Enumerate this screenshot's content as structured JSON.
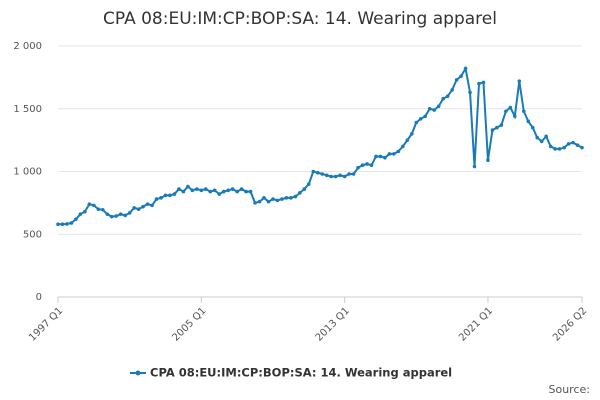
{
  "chart_data": {
    "type": "line",
    "title": "CPA 08:EU:IM:CP:BOP:SA: 14. Wearing apparel",
    "source": "Source:",
    "categories": [
      "1997 Q1",
      null,
      null,
      null,
      null,
      null,
      null,
      null,
      null,
      null,
      null,
      null,
      null,
      null,
      null,
      null,
      null,
      null,
      null,
      null,
      null,
      null,
      null,
      null,
      null,
      null,
      null,
      null,
      null,
      null,
      null,
      null,
      "2005 Q1",
      null,
      null,
      null,
      null,
      null,
      null,
      null,
      null,
      null,
      null,
      null,
      null,
      null,
      null,
      null,
      null,
      null,
      null,
      null,
      null,
      null,
      null,
      null,
      null,
      null,
      null,
      null,
      null,
      null,
      null,
      null,
      "2013 Q1",
      null,
      null,
      null,
      null,
      null,
      null,
      null,
      null,
      null,
      null,
      null,
      null,
      null,
      null,
      null,
      null,
      null,
      null,
      null,
      null,
      null,
      null,
      null,
      null,
      null,
      null,
      null,
      null,
      null,
      null,
      null,
      "2021 Q1",
      null,
      null,
      null,
      null,
      null,
      null,
      null,
      null,
      null,
      null,
      null,
      null,
      null,
      null,
      null,
      null,
      null,
      null,
      null,
      null,
      "2026 Q2"
    ],
    "series": [
      {
        "name": "CPA 08:EU:IM:CP:BOP:SA: 14. Wearing apparel",
        "color": "#1a7bb9",
        "values": [
          580,
          580,
          582,
          590,
          620,
          660,
          680,
          740,
          730,
          700,
          695,
          660,
          640,
          645,
          660,
          650,
          670,
          710,
          700,
          720,
          740,
          730,
          780,
          790,
          810,
          810,
          820,
          860,
          840,
          880,
          850,
          860,
          850,
          860,
          840,
          850,
          820,
          840,
          850,
          860,
          840,
          860,
          840,
          840,
          750,
          760,
          790,
          760,
          780,
          770,
          780,
          790,
          790,
          800,
          830,
          860,
          900,
          1000,
          990,
          980,
          970,
          960,
          960,
          970,
          960,
          980,
          980,
          1030,
          1050,
          1060,
          1050,
          1120,
          1120,
          1110,
          1140,
          1140,
          1160,
          1200,
          1250,
          1300,
          1390,
          1420,
          1440,
          1500,
          1490,
          1520,
          1580,
          1600,
          1650,
          1730,
          1760,
          1820,
          1630,
          1040,
          1700,
          1710,
          1090,
          1330,
          1350,
          1370,
          1480,
          1510,
          1440,
          1720,
          1480,
          1400,
          1350,
          1270,
          1240,
          1280,
          1200,
          1180,
          1180,
          1190,
          1220,
          1230,
          1210,
          1190
        ]
      }
    ],
    "ylim": [
      0,
      2000
    ],
    "yticks": [
      0,
      500,
      {
        "value": 1000,
        "label": "1 000"
      },
      {
        "value": 1500,
        "label": "1 500"
      },
      {
        "value": 2000,
        "label": "2 000"
      }
    ],
    "grid": true
  }
}
